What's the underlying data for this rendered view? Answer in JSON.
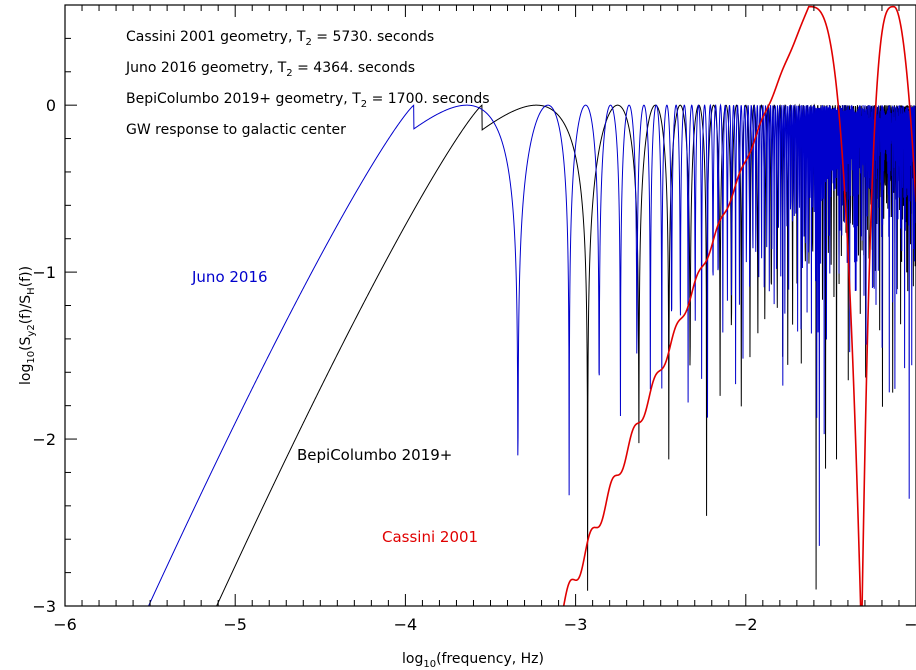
{
  "chart_data": {
    "type": "line",
    "title": "",
    "xlabel": "log10(frequency, Hz)",
    "ylabel": "log10(Sy2(f)/SH(f))",
    "xlim": [
      -6,
      -1
    ],
    "ylim": [
      -3,
      0.6
    ],
    "x_ticks": [
      -6,
      -5,
      -4,
      -3,
      -2,
      -1
    ],
    "y_ticks": [
      0,
      -1,
      -2,
      -3
    ],
    "x_tick_labels": [
      "−6",
      "−5",
      "−4",
      "−3",
      "−2",
      "−1"
    ],
    "y_tick_labels": [
      "0",
      "−1",
      "−2",
      "−3"
    ],
    "grid": false,
    "legend": "none",
    "annotations": [
      {
        "text": "Cassini 2001 geometry, T",
        "sub": "2",
        "rest": " = 5730. seconds"
      },
      {
        "text": "Juno 2016 geometry, T",
        "sub": "2",
        "rest": " = 4364. seconds"
      },
      {
        "text": "BepiColumbo 2019+ geometry, T",
        "sub": "2",
        "rest": " = 1700. seconds"
      },
      {
        "text": "GW response to galactic center",
        "sub": "",
        "rest": ""
      }
    ],
    "series": [
      {
        "name": "Cassini 2001",
        "color": "#e00000",
        "T2_seconds": 5730,
        "x_start": -3.07,
        "peak_x": -1.63,
        "peak_y": 0.59,
        "null_x": -1.32,
        "second_peak_x": -1.13,
        "second_peak_y": 0.59
      },
      {
        "name": "Juno 2016",
        "color": "#0000cc",
        "T2_seconds": 4364,
        "x_start": -5.63,
        "peak_x": -3.95,
        "peak_y": 0.0,
        "first_dip_x": -3.63,
        "first_dip_y": -1.77
      },
      {
        "name": "BepiColumbo 2019+",
        "color": "#000000",
        "T2_seconds": 1700,
        "x_start": -5.22,
        "peak_x": -3.55,
        "peak_y": 0.0
      }
    ]
  },
  "labels": {
    "juno": "Juno 2016",
    "bepi": "BepiColumbo 2019+",
    "cassini": "Cassini 2001",
    "ylabel_main": "log",
    "ylabel_sub10": "10",
    "ylabel_mid": "(S",
    "ylabel_suby": "y2",
    "ylabel_mid2": "(f)/S",
    "ylabel_subH": "H",
    "ylabel_end": "(f))",
    "xlabel_main": "log",
    "xlabel_sub10": "10",
    "xlabel_end": "(frequency, Hz)"
  },
  "colors": {
    "cassini": "#e00000",
    "juno": "#0000cc",
    "bepi": "#000000"
  }
}
